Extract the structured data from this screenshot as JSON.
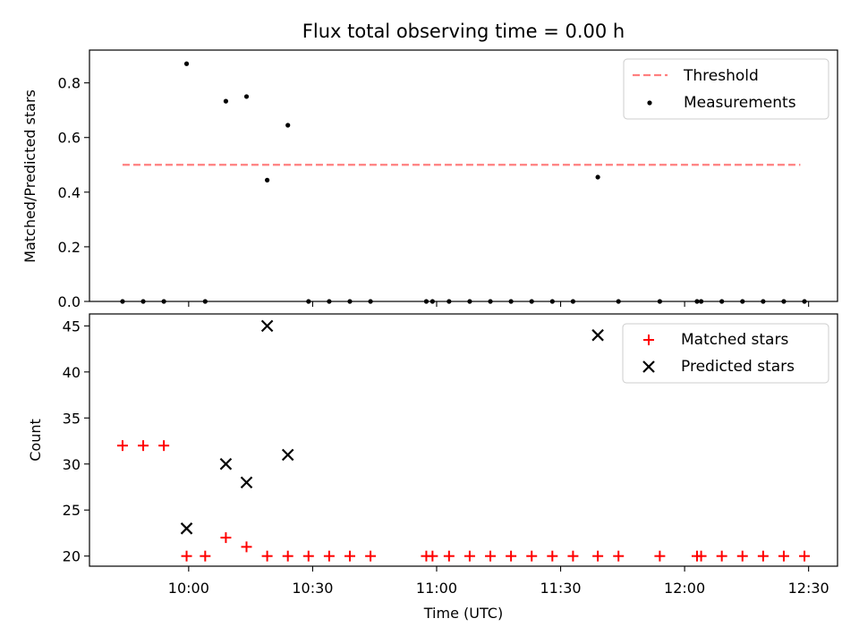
{
  "chart_data": [
    {
      "type": "scatter",
      "title": "Flux total observing time = 0.00 h",
      "xlabel": "",
      "ylabel": "Matched/Predicted stars",
      "ylim": [
        0,
        0.92
      ],
      "yticks": [
        0.0,
        0.2,
        0.4,
        0.6,
        0.8
      ],
      "ytick_labels": [
        "0.0",
        "0.2",
        "0.4",
        "0.6",
        "0.8"
      ],
      "legend_position": "top-right",
      "legend": [
        "Threshold",
        "Measurements"
      ],
      "threshold": {
        "name": "Threshold",
        "value": 0.5,
        "x_range": [
          -16,
          148
        ],
        "color": "#ff7f7f"
      },
      "series": [
        {
          "name": "Measurements",
          "color": "#000000",
          "x": [
            -16,
            -11,
            -6,
            -0.5,
            4,
            9,
            14,
            19,
            24,
            29,
            34,
            39,
            44,
            57.5,
            59,
            63,
            68,
            73,
            78,
            83,
            88,
            93,
            99,
            104,
            114,
            123,
            124,
            129,
            134,
            139,
            144,
            149
          ],
          "y": [
            0,
            0,
            0,
            0.87,
            0,
            0.733,
            0.75,
            0.444,
            0.645,
            0,
            0,
            0,
            0,
            0,
            0,
            0,
            0,
            0,
            0,
            0,
            0,
            0,
            0.455,
            0,
            0,
            0,
            0,
            0,
            0,
            0,
            0,
            0
          ]
        }
      ]
    },
    {
      "type": "scatter",
      "xlabel": "Time (UTC)",
      "ylabel": "Count",
      "ylim": [
        18.9,
        46.3
      ],
      "yticks": [
        20,
        25,
        30,
        35,
        40,
        45
      ],
      "ytick_labels": [
        "20",
        "25",
        "30",
        "35",
        "40",
        "45"
      ],
      "xlim": [
        -24,
        157
      ],
      "xticks": [
        0,
        30,
        60,
        90,
        120,
        150
      ],
      "xtick_labels": [
        "10:00",
        "10:30",
        "11:00",
        "11:30",
        "12:00",
        "12:30"
      ],
      "legend_position": "top-right",
      "legend": [
        "Matched stars",
        "Predicted stars"
      ],
      "series": [
        {
          "name": "Matched stars",
          "color": "#ff0000",
          "x": [
            -16,
            -11,
            -6,
            -0.5,
            4,
            9,
            14,
            19,
            24,
            29,
            34,
            39,
            44,
            57.5,
            59,
            63,
            68,
            73,
            78,
            83,
            88,
            93,
            99,
            104,
            114,
            123,
            124,
            129,
            134,
            139,
            144,
            149
          ],
          "y": [
            32,
            32,
            32,
            20,
            20,
            22,
            21,
            20,
            20,
            20,
            20,
            20,
            20,
            20,
            20,
            20,
            20,
            20,
            20,
            20,
            20,
            20,
            20,
            20,
            20,
            20,
            20,
            20,
            20,
            20,
            20,
            20
          ]
        },
        {
          "name": "Predicted stars",
          "color": "#000000",
          "x": [
            -0.5,
            9,
            14,
            19,
            24,
            99
          ],
          "y": [
            23,
            30,
            28,
            45,
            31,
            44
          ]
        }
      ]
    }
  ]
}
